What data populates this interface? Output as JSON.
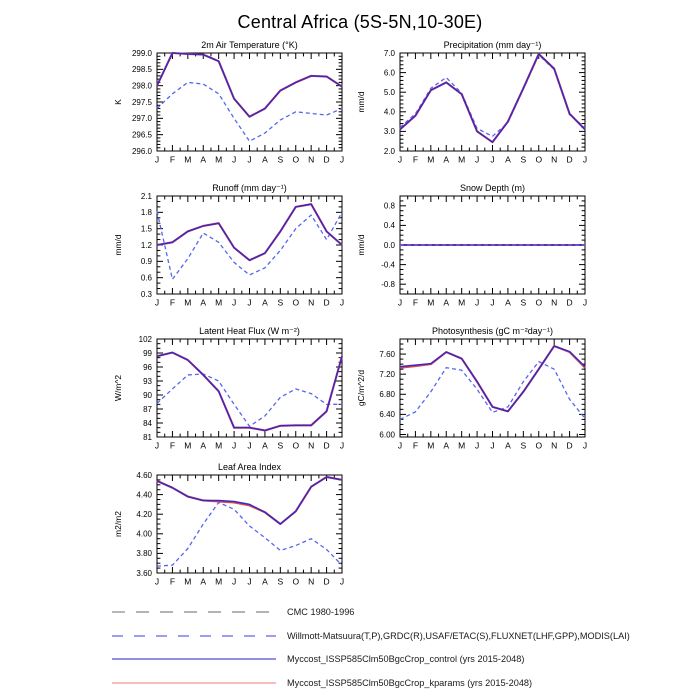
{
  "title": "Central Africa (5S-5N,10-30E)",
  "months": [
    "J",
    "F",
    "M",
    "A",
    "M",
    "J",
    "J",
    "A",
    "S",
    "O",
    "N",
    "D",
    "J"
  ],
  "colors": {
    "axis": "#000000",
    "model_control_line": "#3b28c4",
    "model_kparams_line": "#e04848",
    "obs_dashed_line": "#5566f0",
    "legend_gray": "#9a9a9a",
    "legend_blue_dash": "#7b7bed",
    "legend_blue_solid": "#6b6be0",
    "legend_salmon_solid": "#f6a6a6"
  },
  "chart_data": [
    {
      "id": "temp",
      "type": "line",
      "title": "2m Air Temperature (°K)",
      "ylabel": "K",
      "ylim": [
        296.0,
        299.0
      ],
      "ytick_vals": [
        296.0,
        296.5,
        297.0,
        297.5,
        298.0,
        298.5,
        299.0
      ],
      "ytick_labels": [
        "296.0",
        "296.5",
        "297.0",
        "297.5",
        "298.0",
        "298.5",
        "299.0"
      ],
      "y_minor": 4,
      "series": [
        {
          "name": "obs",
          "style": "dashed",
          "color": "#5566f0",
          "width": 1.3,
          "values": [
            297.3,
            297.75,
            298.1,
            298.05,
            297.75,
            297.0,
            296.3,
            296.55,
            296.95,
            297.2,
            297.15,
            297.1,
            297.3
          ]
        },
        {
          "name": "kparams",
          "style": "solid",
          "color": "#e04848",
          "width": 2.1,
          "values": [
            298.0,
            299.0,
            298.97,
            298.95,
            298.75,
            297.6,
            297.05,
            297.3,
            297.85,
            298.1,
            298.3,
            298.28,
            297.97
          ]
        },
        {
          "name": "control",
          "style": "solid",
          "color": "#3b28c4",
          "width": 1.5,
          "values": [
            298.0,
            299.0,
            298.97,
            298.95,
            298.75,
            297.6,
            297.05,
            297.3,
            297.85,
            298.1,
            298.3,
            298.28,
            297.97
          ]
        }
      ]
    },
    {
      "id": "precip",
      "type": "line",
      "title": "Precipitation (mm day⁻¹)",
      "ylabel": "mm/d",
      "ylim": [
        2.0,
        7.0
      ],
      "ytick_vals": [
        2.0,
        3.0,
        4.0,
        5.0,
        6.0,
        7.0
      ],
      "ytick_labels": [
        "2.0",
        "3.0",
        "4.0",
        "5.0",
        "6.0",
        "7.0"
      ],
      "y_minor": 4,
      "series": [
        {
          "name": "obs",
          "style": "dashed",
          "color": "#5566f0",
          "width": 1.3,
          "values": [
            3.2,
            3.9,
            5.2,
            5.75,
            4.95,
            3.15,
            2.75,
            3.45,
            5.15,
            6.9,
            6.15,
            3.85,
            3.2
          ]
        },
        {
          "name": "kparams",
          "style": "solid",
          "color": "#e04848",
          "width": 2.1,
          "values": [
            3.1,
            3.8,
            5.1,
            5.5,
            4.9,
            3.0,
            2.45,
            3.5,
            5.2,
            6.95,
            6.2,
            3.9,
            3.1
          ]
        },
        {
          "name": "control",
          "style": "solid",
          "color": "#3b28c4",
          "width": 1.5,
          "values": [
            3.1,
            3.8,
            5.1,
            5.5,
            4.9,
            3.0,
            2.45,
            3.5,
            5.2,
            6.95,
            6.2,
            3.9,
            3.1
          ]
        }
      ]
    },
    {
      "id": "runoff",
      "type": "line",
      "title": "Runoff (mm day⁻¹)",
      "ylabel": "mm/d",
      "ylim": [
        0.3,
        2.1
      ],
      "ytick_vals": [
        0.3,
        0.6,
        0.9,
        1.2,
        1.5,
        1.8,
        2.1
      ],
      "ytick_labels": [
        "0.3",
        "0.6",
        "0.9",
        "1.2",
        "1.5",
        "1.8",
        "2.1"
      ],
      "y_minor": 2,
      "series": [
        {
          "name": "obs",
          "style": "dashed",
          "color": "#5566f0",
          "width": 1.3,
          "values": [
            1.82,
            0.57,
            0.95,
            1.42,
            1.25,
            0.88,
            0.65,
            0.78,
            1.1,
            1.5,
            1.75,
            1.3,
            1.8
          ]
        },
        {
          "name": "kparams",
          "style": "solid",
          "color": "#e04848",
          "width": 2.1,
          "values": [
            1.2,
            1.25,
            1.45,
            1.55,
            1.6,
            1.15,
            0.92,
            1.05,
            1.45,
            1.9,
            1.95,
            1.45,
            1.2
          ]
        },
        {
          "name": "control",
          "style": "solid",
          "color": "#3b28c4",
          "width": 1.5,
          "values": [
            1.2,
            1.25,
            1.45,
            1.55,
            1.6,
            1.15,
            0.92,
            1.05,
            1.45,
            1.9,
            1.95,
            1.45,
            1.2
          ]
        }
      ]
    },
    {
      "id": "snow",
      "type": "line",
      "title": "Snow Depth (m)",
      "ylabel": "mm/d",
      "ylim": [
        -1.0,
        1.0
      ],
      "ytick_vals": [
        -0.8,
        -0.4,
        0.0,
        0.4,
        0.8
      ],
      "ytick_labels": [
        "-0.8",
        "-0.4",
        "0.0",
        "0.4",
        "0.8"
      ],
      "y_minor": 3,
      "series": [
        {
          "name": "kparams",
          "style": "solid",
          "color": "#e04848",
          "width": 2.1,
          "values": [
            0,
            0,
            0,
            0,
            0,
            0,
            0,
            0,
            0,
            0,
            0,
            0,
            0
          ]
        },
        {
          "name": "control",
          "style": "solid",
          "color": "#3b28c4",
          "width": 1.5,
          "values": [
            0,
            0,
            0,
            0,
            0,
            0,
            0,
            0,
            0,
            0,
            0,
            0,
            0
          ]
        },
        {
          "name": "obs",
          "style": "dashed",
          "color": "#5566f0",
          "width": 1.3,
          "values": [
            0,
            0,
            0,
            0,
            0,
            0,
            0,
            0,
            0,
            0,
            0,
            0,
            0
          ]
        }
      ]
    },
    {
      "id": "lhf",
      "type": "line",
      "title": "Latent Heat Flux (W m⁻²)",
      "ylabel": "W/m^2",
      "ylim": [
        81,
        102
      ],
      "ytick_vals": [
        81,
        84,
        87,
        90,
        93,
        96,
        99,
        102
      ],
      "ytick_labels": [
        "81",
        "84",
        "87",
        "90",
        "93",
        "96",
        "99",
        "102"
      ],
      "y_minor": 2,
      "series": [
        {
          "name": "obs",
          "style": "dashed",
          "color": "#5566f0",
          "width": 1.3,
          "values": [
            88.2,
            91.3,
            94.3,
            94.5,
            93.0,
            88.0,
            83.3,
            85.5,
            89.5,
            91.3,
            90.3,
            88.0,
            88.0
          ]
        },
        {
          "name": "kparams",
          "style": "solid",
          "color": "#e04848",
          "width": 2.1,
          "values": [
            98.3,
            99.1,
            97.5,
            94.3,
            90.8,
            83.0,
            83.0,
            82.4,
            83.4,
            83.5,
            83.5,
            86.5,
            98.3
          ]
        },
        {
          "name": "control",
          "style": "solid",
          "color": "#3b28c4",
          "width": 1.5,
          "values": [
            98.3,
            99.1,
            97.5,
            94.3,
            90.8,
            83.0,
            83.0,
            82.4,
            83.4,
            83.5,
            83.5,
            86.5,
            98.3
          ]
        }
      ]
    },
    {
      "id": "photo",
      "type": "line",
      "title": "Photosynthesis (gC m⁻²day⁻¹)",
      "ylabel": "gC/m^2/d",
      "ylim": [
        5.95,
        7.9
      ],
      "ytick_vals": [
        6.0,
        6.4,
        6.8,
        7.2,
        7.6
      ],
      "ytick_labels": [
        "6.00",
        "6.40",
        "6.80",
        "7.20",
        "7.60"
      ],
      "y_minor": 3,
      "series": [
        {
          "name": "obs",
          "style": "dashed",
          "color": "#5566f0",
          "width": 1.3,
          "values": [
            6.3,
            6.45,
            6.85,
            7.33,
            7.28,
            6.9,
            6.44,
            6.55,
            7.05,
            7.45,
            7.3,
            6.7,
            6.32
          ]
        },
        {
          "name": "kparams",
          "style": "solid",
          "color": "#e04848",
          "width": 2.1,
          "values": [
            7.33,
            7.36,
            7.4,
            7.64,
            7.51,
            7.05,
            6.55,
            6.46,
            6.85,
            7.3,
            7.76,
            7.64,
            7.33
          ]
        },
        {
          "name": "control",
          "style": "solid",
          "color": "#3b28c4",
          "width": 1.5,
          "values": [
            7.35,
            7.38,
            7.41,
            7.64,
            7.51,
            7.05,
            6.55,
            6.46,
            6.85,
            7.3,
            7.76,
            7.65,
            7.35
          ]
        }
      ]
    },
    {
      "id": "lai",
      "type": "line",
      "title": "Leaf Area Index",
      "ylabel": "m2/m2",
      "ylim": [
        3.6,
        4.6
      ],
      "ytick_vals": [
        3.6,
        3.8,
        4.0,
        4.2,
        4.4,
        4.6
      ],
      "ytick_labels": [
        "3.60",
        "3.80",
        "4.00",
        "4.20",
        "4.40",
        "4.60"
      ],
      "y_minor": 3,
      "series": [
        {
          "name": "obs",
          "style": "dashed",
          "color": "#5566f0",
          "width": 1.3,
          "values": [
            3.67,
            3.68,
            3.85,
            4.1,
            4.32,
            4.25,
            4.08,
            3.96,
            3.83,
            3.88,
            3.95,
            3.84,
            3.68
          ]
        },
        {
          "name": "kparams",
          "style": "solid",
          "color": "#e04848",
          "width": 2.1,
          "values": [
            4.54,
            4.47,
            4.38,
            4.34,
            4.33,
            4.32,
            4.29,
            4.22,
            4.1,
            4.23,
            4.48,
            4.58,
            4.55
          ]
        },
        {
          "name": "control",
          "style": "solid",
          "color": "#3b28c4",
          "width": 1.5,
          "values": [
            4.54,
            4.47,
            4.38,
            4.34,
            4.34,
            4.33,
            4.3,
            4.22,
            4.1,
            4.23,
            4.48,
            4.58,
            4.55
          ]
        }
      ]
    }
  ],
  "legend": {
    "entries": [
      {
        "label": "CMC 1980-1996",
        "color": "#9a9a9a",
        "style": "dashed",
        "dash": "13,11",
        "width": 1.4
      },
      {
        "label": "Willmott-Matsuura(T,P),GRDC(R),USAF/ETAC(S),FLUXNET(LHF,GPP),MODIS(LAI)",
        "color": "#7b7bed",
        "style": "dashed",
        "dash": "11,11",
        "width": 1.4
      },
      {
        "label": "Myccost_ISSP585Clm50BgcCrop_control (yrs 2015-2048)",
        "color": "#6b6be0",
        "style": "solid",
        "dash": "",
        "width": 1.4
      },
      {
        "label": "Myccost_ISSP585Clm50BgcCrop_kparams (yrs 2015-2048)",
        "color": "#f6a6a6",
        "style": "solid",
        "dash": "",
        "width": 1.6
      }
    ]
  }
}
